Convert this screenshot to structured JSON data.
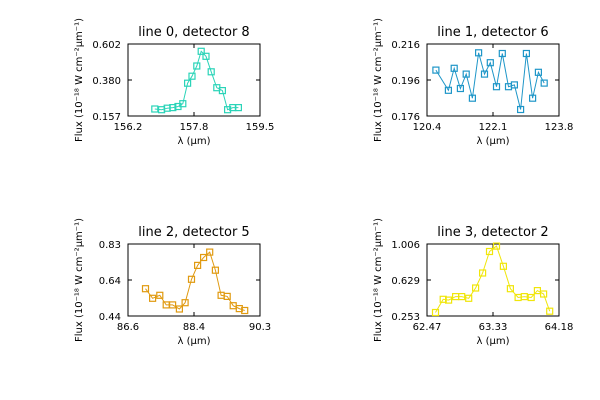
{
  "chart_data": [
    {
      "type": "line",
      "title": "line 0, detector 8",
      "xlabel": "λ (μm)",
      "ylabel": "Flux (10⁻¹⁸ W cm⁻²μm⁻¹)",
      "color": "#2ad4b8",
      "xlim": [
        156.2,
        159.5
      ],
      "ylim": [
        0.157,
        0.602
      ],
      "xticks": [
        "156.2",
        "157.8",
        "159.5"
      ],
      "yticks": [
        "0.157",
        "0.380",
        "0.602"
      ],
      "x": [
        156.87,
        157.04,
        157.18,
        157.32,
        157.45,
        157.57,
        157.69,
        157.8,
        157.92,
        158.03,
        158.15,
        158.28,
        158.42,
        158.56,
        158.69,
        158.82,
        158.96
      ],
      "y": [
        0.2,
        0.196,
        0.205,
        0.209,
        0.216,
        0.233,
        0.36,
        0.403,
        0.466,
        0.557,
        0.526,
        0.43,
        0.332,
        0.314,
        0.196,
        0.209,
        0.209
      ]
    },
    {
      "type": "line",
      "title": "line 1, detector 6",
      "xlabel": "λ (μm)",
      "ylabel": "Flux (10⁻¹⁸ W cm⁻²μm⁻¹)",
      "color": "#1e96c8",
      "xlim": [
        120.4,
        123.8
      ],
      "ylim": [
        0.176,
        0.216
      ],
      "xticks": [
        "120.4",
        "122.1",
        "123.8"
      ],
      "yticks": [
        "0.176",
        "0.196",
        "0.216"
      ],
      "x": [
        120.63,
        120.95,
        121.1,
        121.26,
        121.41,
        121.57,
        121.73,
        121.88,
        122.03,
        122.19,
        122.34,
        122.5,
        122.65,
        122.81,
        122.96,
        123.12,
        123.27,
        123.42
      ],
      "y": [
        0.2015,
        0.1903,
        0.2025,
        0.1913,
        0.1993,
        0.1859,
        0.2111,
        0.1993,
        0.2056,
        0.1923,
        0.2107,
        0.1923,
        0.1933,
        0.1796,
        0.2107,
        0.1859,
        0.2003,
        0.1943
      ]
    },
    {
      "type": "line",
      "title": "line 2, detector 5",
      "xlabel": "λ (μm)",
      "ylabel": "Flux (10⁻¹⁸ W cm⁻²μm⁻¹)",
      "color": "#e09a10",
      "xlim": [
        86.6,
        90.3
      ],
      "ylim": [
        0.44,
        0.83
      ],
      "xticks": [
        "86.6",
        "88.4",
        "90.3"
      ],
      "yticks": [
        "0.44",
        "0.64",
        "0.83"
      ],
      "x": [
        87.09,
        87.29,
        87.49,
        87.67,
        87.85,
        88.04,
        88.2,
        88.38,
        88.55,
        88.72,
        88.89,
        89.05,
        89.21,
        89.38,
        89.55,
        89.72,
        89.87
      ],
      "y": [
        0.588,
        0.536,
        0.552,
        0.5,
        0.5,
        0.478,
        0.512,
        0.639,
        0.714,
        0.757,
        0.786,
        0.688,
        0.552,
        0.546,
        0.496,
        0.48,
        0.47
      ]
    },
    {
      "type": "line",
      "title": "line 3, detector 2",
      "xlabel": "λ (μm)",
      "ylabel": "Flux (10⁻¹⁸ W cm⁻²μm⁻¹)",
      "color": "#f0e60a",
      "xlim": [
        62.47,
        64.18
      ],
      "ylim": [
        0.253,
        1.006
      ],
      "xticks": [
        "62.47",
        "63.33",
        "64.18"
      ],
      "yticks": [
        "0.253",
        "0.629",
        "1.006"
      ],
      "x": [
        62.58,
        62.68,
        62.75,
        62.84,
        62.92,
        63.01,
        63.1,
        63.19,
        63.28,
        63.37,
        63.46,
        63.55,
        63.65,
        63.73,
        63.82,
        63.9,
        63.98,
        64.06
      ],
      "y": [
        0.29,
        0.428,
        0.419,
        0.456,
        0.456,
        0.438,
        0.546,
        0.703,
        0.928,
        0.984,
        0.773,
        0.538,
        0.446,
        0.456,
        0.446,
        0.519,
        0.483,
        0.303
      ]
    }
  ]
}
